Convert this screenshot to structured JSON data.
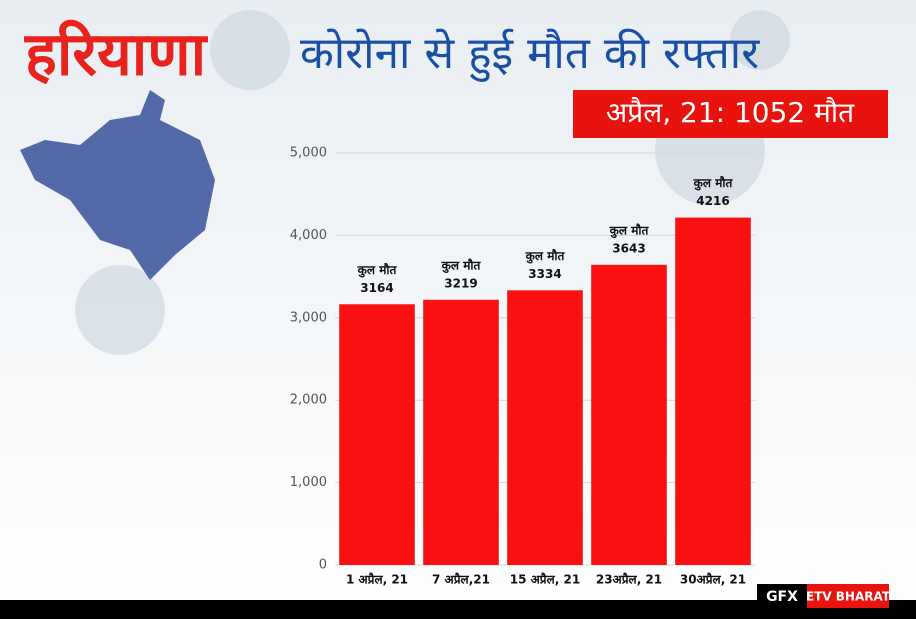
{
  "chart_data": {
    "type": "bar",
    "title": "हरियाणा",
    "subtitle": "कोरोना से हुई मौत की रफ्तार",
    "highlight": "अप्रैल, 21: 1052 मौत",
    "bar_label": "कुल मौत",
    "categories": [
      "1 अप्रैल, 21",
      "7 अप्रैल,21",
      "15 अप्रैल, 21",
      "23अप्रैल, 21",
      "30अप्रैल, 21"
    ],
    "values": [
      3164,
      3219,
      3334,
      3643,
      4216
    ],
    "color": "#f91010",
    "ylim": [
      0,
      5000
    ],
    "yticks": [
      0,
      {
        "value": 1000,
        "label": "1,000"
      },
      {
        "value": 2000,
        "label": "2,000"
      },
      {
        "value": 3000,
        "label": "3,000"
      },
      {
        "value": 4000,
        "label": "4,000"
      },
      {
        "value": 5000,
        "label": "5,000"
      }
    ],
    "grid": true,
    "footer": {
      "left": "GFX",
      "right": "ETV BHARAT"
    }
  }
}
